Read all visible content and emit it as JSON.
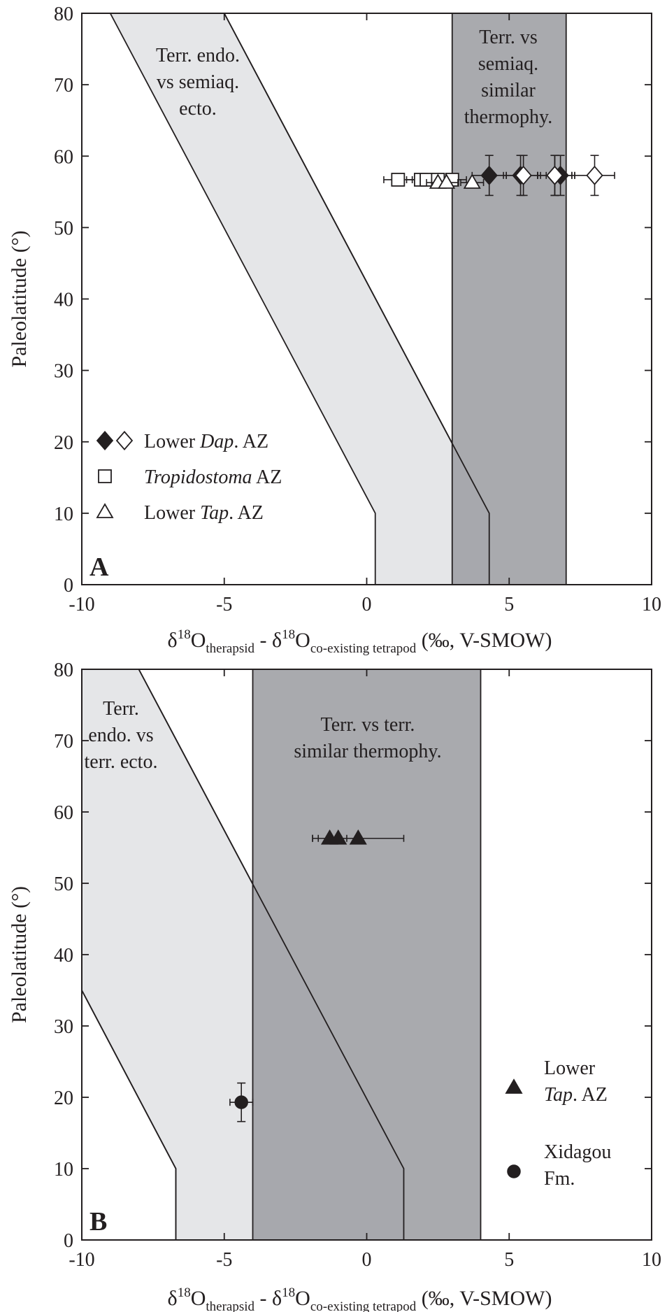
{
  "chart_data": [
    {
      "panel": "A",
      "type": "scatter",
      "xlim": [
        -10,
        10
      ],
      "ylim": [
        0,
        80
      ],
      "xticks": [
        -10,
        -5,
        0,
        5,
        10
      ],
      "yticks": [
        0,
        10,
        20,
        30,
        40,
        50,
        60,
        70,
        80
      ],
      "tick_labels_x": [
        "-10",
        "-5",
        "0",
        "5",
        "10"
      ],
      "tick_labels_y": [
        "0",
        "10",
        "20",
        "30",
        "40",
        "50",
        "60",
        "70",
        "80"
      ],
      "ylabel": "Paleolatitude (°)",
      "xlabel": {
        "delta": "δ",
        "sup": "18",
        "o": "O",
        "sub1": "therapsid",
        "mid": " - δ",
        "sub2": "co-existing tetrapod",
        "tail": " (‰, V-SMOW)"
      },
      "regions": [
        {
          "name": "light",
          "color": "#e5e6e8",
          "polygon": [
            [
              -9,
              80
            ],
            [
              -5,
              80
            ],
            [
              4.3,
              10
            ],
            [
              4.3,
              0
            ],
            [
              0.3,
              0
            ],
            [
              0.3,
              10
            ]
          ],
          "label_lines": [
            "Terr. endo.",
            "vs semiaq.",
            "ecto."
          ]
        },
        {
          "name": "dark",
          "color": "#a2a3a7",
          "x_range": [
            3,
            7
          ],
          "label_lines": [
            "Terr. vs",
            "semiaq.",
            "similar",
            "thermophy."
          ]
        }
      ],
      "series": [
        {
          "name": "Lower Dap. AZ (filled)",
          "marker": "diamond-filled",
          "points": [
            {
              "x": 4.3,
              "y": 57.3,
              "xerr": 0.6,
              "yerr": 2.8
            },
            {
              "x": 5.4,
              "y": 57.3,
              "xerr": 0.6,
              "yerr": 2.8
            },
            {
              "x": 6.6,
              "y": 57.3,
              "xerr": 0.6,
              "yerr": 2.8
            },
            {
              "x": 6.8,
              "y": 57.3,
              "xerr": 0.5,
              "yerr": 2.8
            }
          ]
        },
        {
          "name": "Lower Dap. AZ (open)",
          "marker": "diamond-open",
          "points": [
            {
              "x": 5.5,
              "y": 57.3,
              "xerr": 0.6,
              "yerr": 2.8
            },
            {
              "x": 6.6,
              "y": 57.3,
              "xerr": 0.6,
              "yerr": 2.8
            },
            {
              "x": 8.0,
              "y": 57.3,
              "xerr": 0.7,
              "yerr": 2.8
            }
          ]
        },
        {
          "name": "Tropidostoma AZ",
          "marker": "square-open",
          "points": [
            {
              "x": 1.1,
              "y": 56.7,
              "xerr": 0.5,
              "yerr": 0
            },
            {
              "x": 1.9,
              "y": 56.7,
              "xerr": 0.5,
              "yerr": 0
            },
            {
              "x": 2.1,
              "y": 56.7,
              "xerr": 0.5,
              "yerr": 0
            },
            {
              "x": 2.5,
              "y": 56.7,
              "xerr": 0.5,
              "yerr": 0
            },
            {
              "x": 3.0,
              "y": 56.7,
              "xerr": 0.5,
              "yerr": 0
            }
          ]
        },
        {
          "name": "Lower Tap. AZ",
          "marker": "triangle-open",
          "points": [
            {
              "x": 2.5,
              "y": 56.3,
              "xerr": 0.4,
              "yerr": 0
            },
            {
              "x": 2.8,
              "y": 56.3,
              "xerr": 0.4,
              "yerr": 0
            },
            {
              "x": 3.7,
              "y": 56.3,
              "xerr": 0.4,
              "yerr": 0
            }
          ]
        }
      ],
      "legend": {
        "placement": "lower-left",
        "items": [
          {
            "markers": [
              "diamond-filled",
              "diamond-open"
            ],
            "pre": "Lower ",
            "ital": "Dap",
            "post": ". AZ"
          },
          {
            "markers": [
              "square-open"
            ],
            "pre": "",
            "ital": "Tropidostoma",
            "post": " AZ"
          },
          {
            "markers": [
              "triangle-open"
            ],
            "pre": "Lower ",
            "ital": "Tap",
            "post": ". AZ"
          }
        ]
      }
    },
    {
      "panel": "B",
      "type": "scatter",
      "xlim": [
        -10,
        10
      ],
      "ylim": [
        0,
        80
      ],
      "xticks": [
        -10,
        -5,
        0,
        5,
        10
      ],
      "yticks": [
        0,
        10,
        20,
        30,
        40,
        50,
        60,
        70,
        80
      ],
      "tick_labels_x": [
        "-10",
        "-5",
        "0",
        "5",
        "10"
      ],
      "tick_labels_y": [
        "0",
        "10",
        "20",
        "30",
        "40",
        "50",
        "60",
        "70",
        "80"
      ],
      "ylabel": "Paleolatitude (°)",
      "xlabel": {
        "delta": "δ",
        "sup": "18",
        "o": "O",
        "sub1": "therapsid",
        "mid": " - δ",
        "sub2": "co-existing tetrapod",
        "tail": " (‰, V-SMOW)"
      },
      "regions": [
        {
          "name": "light",
          "color": "#e5e6e8",
          "polygon": [
            [
              -10,
              80
            ],
            [
              -8,
              80
            ],
            [
              1.3,
              10
            ],
            [
              1.3,
              0
            ],
            [
              -6.7,
              0
            ],
            [
              -6.7,
              10
            ],
            [
              -10,
              35
            ]
          ],
          "label_lines": [
            "Terr.",
            "endo. vs",
            "terr. ecto."
          ]
        },
        {
          "name": "dark",
          "color": "#a2a3a7",
          "x_range": [
            -4,
            4
          ],
          "label_lines": [
            "Terr. vs terr.",
            "similar thermophy."
          ]
        }
      ],
      "boundary_lines": [
        [
          [
            -8,
            80
          ],
          [
            1.3,
            10
          ],
          [
            1.3,
            0
          ]
        ],
        [
          [
            -10,
            35
          ],
          [
            -6.7,
            10
          ],
          [
            -6.7,
            0
          ]
        ]
      ],
      "series": [
        {
          "name": "Lower Tap. AZ",
          "marker": "triangle-filled",
          "points": [
            {
              "x": -1.3,
              "y": 56.3,
              "xerr": 0.6,
              "yerr": 0
            },
            {
              "x": -1.0,
              "y": 56.3,
              "xerr": 0.7,
              "yerr": 0
            },
            {
              "x": -0.3,
              "y": 56.3,
              "xerr": 1.6,
              "yerr": 0
            }
          ]
        },
        {
          "name": "Xidagou Fm.",
          "marker": "circle-filled",
          "points": [
            {
              "x": -4.4,
              "y": 19.3,
              "xerr": 0.4,
              "yerr": 2.7
            }
          ]
        }
      ],
      "legend": {
        "placement": "lower-right",
        "items": [
          {
            "markers": [
              "triangle-filled"
            ],
            "lines": [
              {
                "pre": "Lower",
                "ital": "",
                "post": ""
              },
              {
                "pre": "",
                "ital": "Tap",
                "post": ". AZ"
              }
            ]
          },
          {
            "markers": [
              "circle-filled"
            ],
            "lines": [
              {
                "pre": "Xidagou",
                "ital": "",
                "post": ""
              },
              {
                "pre": "Fm.",
                "ital": "",
                "post": ""
              }
            ]
          }
        ]
      }
    }
  ],
  "panel_letters": [
    "A",
    "B"
  ]
}
